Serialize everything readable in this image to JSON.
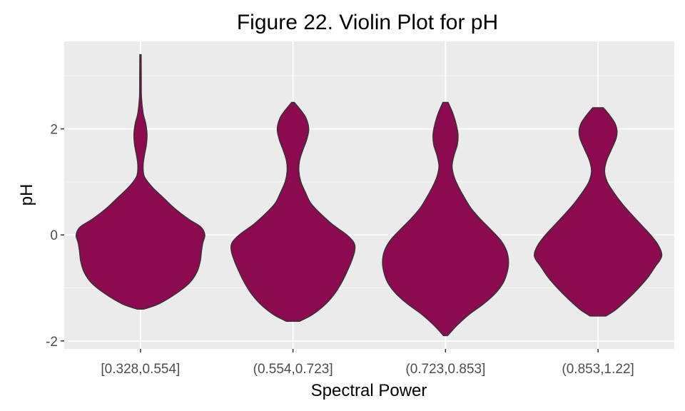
{
  "chart_data": {
    "type": "violin",
    "title": "Figure 22. Violin Plot for pH",
    "xlabel": "Spectral Power",
    "ylabel": "pH",
    "categories": [
      "[0.328,0.554]",
      "(0.554,0.723]",
      "(0.723,0.853]",
      "(0.853,1.22]"
    ],
    "ylim": [
      -2.15,
      3.65
    ],
    "yticks": [
      -2,
      0,
      2
    ],
    "grid": true,
    "fill_color": "#8B0A50",
    "outline_color": "#333333",
    "panel_color": "#EBEBEB",
    "violins": [
      {
        "category": "[0.328,0.554]",
        "min": -1.4,
        "max": 3.4,
        "profile": [
          [
            -1.4,
            0.05
          ],
          [
            -1.3,
            0.28
          ],
          [
            -1.1,
            0.55
          ],
          [
            -0.9,
            0.75
          ],
          [
            -0.7,
            0.86
          ],
          [
            -0.5,
            0.91
          ],
          [
            -0.3,
            0.93
          ],
          [
            -0.15,
            0.95
          ],
          [
            0.0,
            0.98
          ],
          [
            0.15,
            0.92
          ],
          [
            0.3,
            0.73
          ],
          [
            0.5,
            0.52
          ],
          [
            0.7,
            0.35
          ],
          [
            0.9,
            0.18
          ],
          [
            1.1,
            0.06
          ],
          [
            1.3,
            0.04
          ],
          [
            1.5,
            0.06
          ],
          [
            1.7,
            0.09
          ],
          [
            1.9,
            0.1
          ],
          [
            2.1,
            0.08
          ],
          [
            2.3,
            0.04
          ],
          [
            2.6,
            0.015
          ],
          [
            3.0,
            0.012
          ],
          [
            3.4,
            0.01
          ]
        ]
      },
      {
        "category": "(0.554,0.723]",
        "min": -1.63,
        "max": 2.5,
        "profile": [
          [
            -1.63,
            0.1
          ],
          [
            -1.5,
            0.3
          ],
          [
            -1.3,
            0.5
          ],
          [
            -1.1,
            0.64
          ],
          [
            -0.9,
            0.74
          ],
          [
            -0.7,
            0.82
          ],
          [
            -0.5,
            0.89
          ],
          [
            -0.3,
            0.94
          ],
          [
            -0.15,
            0.93
          ],
          [
            0.0,
            0.82
          ],
          [
            0.2,
            0.6
          ],
          [
            0.4,
            0.42
          ],
          [
            0.6,
            0.27
          ],
          [
            0.8,
            0.19
          ],
          [
            1.0,
            0.12
          ],
          [
            1.2,
            0.09
          ],
          [
            1.4,
            0.1
          ],
          [
            1.6,
            0.15
          ],
          [
            1.8,
            0.21
          ],
          [
            2.0,
            0.24
          ],
          [
            2.2,
            0.2
          ],
          [
            2.35,
            0.12
          ],
          [
            2.5,
            0.02
          ]
        ]
      },
      {
        "category": "(0.723,0.853]",
        "min": -1.9,
        "max": 2.5,
        "profile": [
          [
            -1.9,
            0.03
          ],
          [
            -1.7,
            0.18
          ],
          [
            -1.5,
            0.36
          ],
          [
            -1.3,
            0.58
          ],
          [
            -1.1,
            0.76
          ],
          [
            -0.9,
            0.88
          ],
          [
            -0.7,
            0.94
          ],
          [
            -0.5,
            0.96
          ],
          [
            -0.3,
            0.93
          ],
          [
            -0.1,
            0.84
          ],
          [
            0.1,
            0.69
          ],
          [
            0.3,
            0.53
          ],
          [
            0.5,
            0.39
          ],
          [
            0.7,
            0.29
          ],
          [
            0.9,
            0.2
          ],
          [
            1.1,
            0.13
          ],
          [
            1.3,
            0.1
          ],
          [
            1.5,
            0.13
          ],
          [
            1.7,
            0.18
          ],
          [
            1.9,
            0.19
          ],
          [
            2.1,
            0.16
          ],
          [
            2.3,
            0.11
          ],
          [
            2.5,
            0.04
          ]
        ]
      },
      {
        "category": "(0.853,1.22]",
        "min": -1.53,
        "max": 2.4,
        "profile": [
          [
            -1.53,
            0.12
          ],
          [
            -1.4,
            0.28
          ],
          [
            -1.2,
            0.46
          ],
          [
            -1.0,
            0.62
          ],
          [
            -0.8,
            0.76
          ],
          [
            -0.6,
            0.87
          ],
          [
            -0.4,
            0.97
          ],
          [
            -0.2,
            0.92
          ],
          [
            0.0,
            0.8
          ],
          [
            0.2,
            0.65
          ],
          [
            0.4,
            0.5
          ],
          [
            0.6,
            0.36
          ],
          [
            0.8,
            0.24
          ],
          [
            1.0,
            0.14
          ],
          [
            1.2,
            0.1
          ],
          [
            1.4,
            0.13
          ],
          [
            1.6,
            0.2
          ],
          [
            1.8,
            0.27
          ],
          [
            1.95,
            0.29
          ],
          [
            2.1,
            0.26
          ],
          [
            2.25,
            0.18
          ],
          [
            2.4,
            0.08
          ]
        ]
      }
    ]
  }
}
